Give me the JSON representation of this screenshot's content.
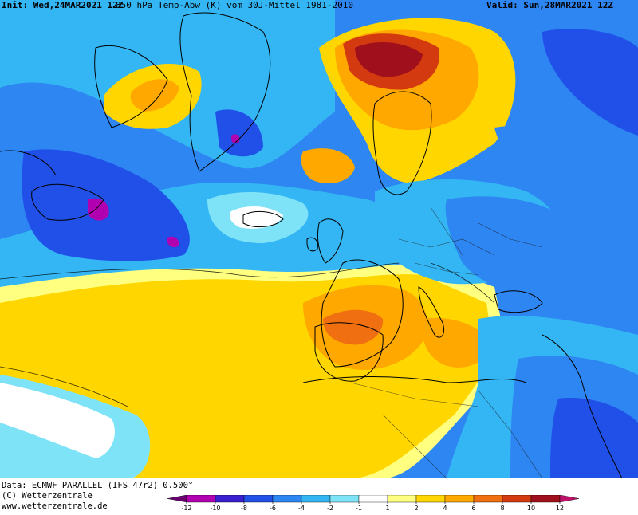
{
  "header": {
    "init": "Init: Wed,24MAR2021 12Z",
    "title": "850 hPa Temp-Abw (K) vom 30J-Mittel 1981-2010",
    "valid": "Valid: Sun,28MAR2021 12Z"
  },
  "credits": {
    "line1": "Data: ECMWF PARALLEL (IFS 47r2) 0.500°",
    "line2": "(C) Wetterzentrale",
    "line3": "www.wetterzentrale.de"
  },
  "legend": {
    "ticks": [
      "-12",
      "-10",
      "-8",
      "-6",
      "-4",
      "-2",
      "-1",
      "1",
      "2",
      "4",
      "6",
      "8",
      "10",
      "12"
    ],
    "colors": [
      "#6a0070",
      "#b000b0",
      "#3a1fd0",
      "#2050e8",
      "#2e86f2",
      "#34b6f4",
      "#7fe3f8",
      "#ffffff",
      "#ffff80",
      "#ffd600",
      "#ffa800",
      "#f06f10",
      "#d43a10",
      "#a0101c",
      "#c0106a"
    ]
  },
  "map": {
    "colors": {
      "purple": "#b000b0",
      "deep_blue": "#3a1fd0",
      "blue": "#2050e8",
      "mid_blue": "#2e86f2",
      "light_blue": "#34b6f4",
      "cyan": "#7fe3f8",
      "white": "#ffffff",
      "pale_yellow": "#ffff80",
      "yellow": "#ffd600",
      "orange": "#ffa800",
      "dark_orange": "#f06f10",
      "red": "#d43a10",
      "dark_red": "#a0101c"
    }
  }
}
